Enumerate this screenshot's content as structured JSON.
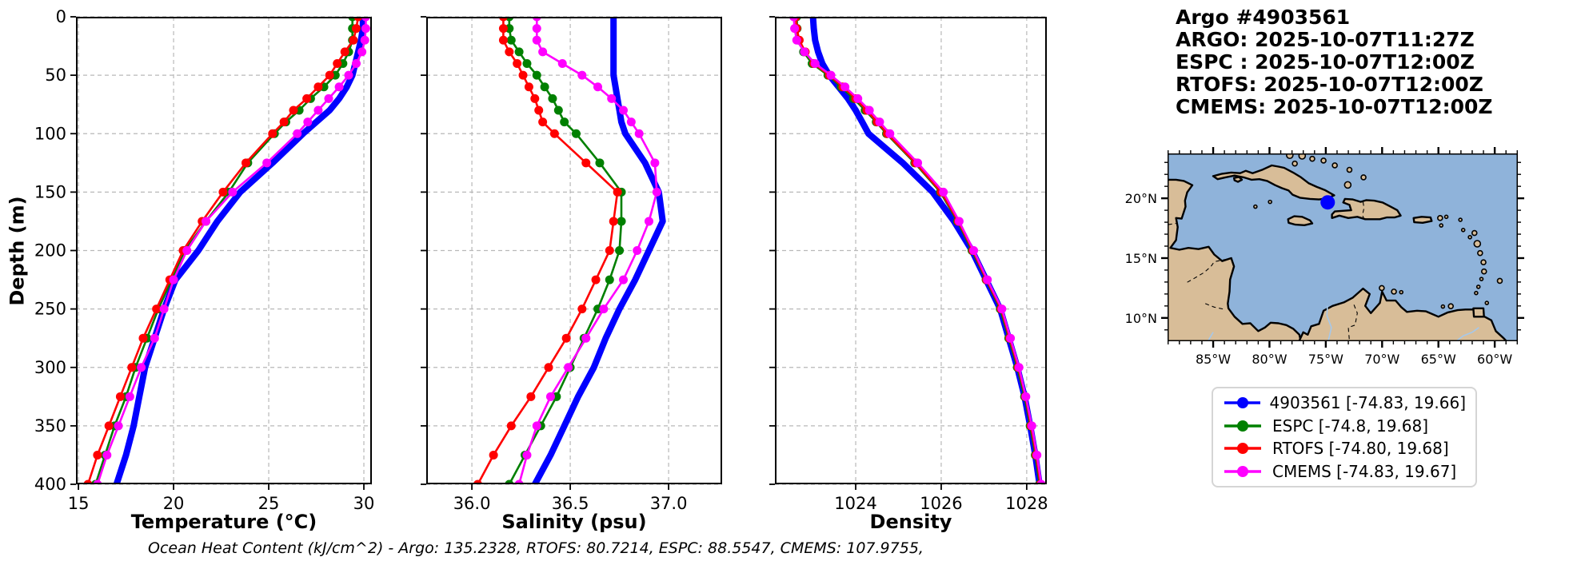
{
  "title_block": {
    "line1": "Argo #4903561",
    "line2": "ARGO: 2025-10-07T11:27Z",
    "line3": "ESPC : 2025-10-07T12:00Z",
    "line4": "RTOFS: 2025-10-07T12:00Z",
    "line5": "CMEMS: 2025-10-07T12:00Z"
  },
  "footer": {
    "ohc_text": "Ocean Heat Content (kJ/cm^2) - Argo: 135.2328,  RTOFS: 80.7214,  ESPC: 88.5547,  CMEMS: 107.9755,"
  },
  "colors": {
    "argo": "#0000ff",
    "espc": "#008000",
    "rtofs": "#ff0000",
    "cmems": "#ff00ff",
    "ocean": "#8fb3da",
    "land": "#d8bd98",
    "grid": "#b8b8b8"
  },
  "legend": {
    "entries": [
      {
        "label": "4903561 [-74.83, 19.66]",
        "color_key": "argo"
      },
      {
        "label": "ESPC [-74.8, 19.68]",
        "color_key": "espc"
      },
      {
        "label": "RTOFS [-74.80, 19.68]",
        "color_key": "rtofs"
      },
      {
        "label": "CMEMS [-74.83, 19.67]",
        "color_key": "cmems"
      }
    ]
  },
  "map": {
    "extent": {
      "lon_min": -89.05,
      "lon_max": -57.95,
      "lat_min": 8.05,
      "lat_max": 23.75
    },
    "xticks": [
      -85,
      -80,
      -75,
      -70,
      -65,
      -60
    ],
    "xtick_labels": [
      "85°W",
      "80°W",
      "75°W",
      "70°W",
      "65°W",
      "60°W"
    ],
    "yticks": [
      20,
      15,
      10
    ],
    "ytick_labels": [
      "20°N",
      "15°N",
      "10°N"
    ],
    "marker": {
      "lon": -74.83,
      "lat": 19.66,
      "color": "#0000ff"
    }
  },
  "chart_data": [
    {
      "type": "line",
      "profile": "temperature",
      "xlabel": "Temperature (°C)",
      "ylabel": "Depth (m)",
      "xlim": [
        14.87,
        30.42
      ],
      "ylim": [
        400,
        0
      ],
      "xticks": [
        15,
        20,
        25,
        30
      ],
      "xtick_labels": [
        "15",
        "20",
        "25",
        "30"
      ],
      "yticks": [
        0,
        50,
        100,
        150,
        200,
        250,
        300,
        350,
        400
      ],
      "ytick_labels": [
        "0",
        "50",
        "100",
        "150",
        "200",
        "250",
        "300",
        "350",
        "400"
      ],
      "show_ytick_labels": true,
      "depths": [
        0,
        10,
        20,
        30,
        40,
        50,
        60,
        70,
        80,
        90,
        100,
        125,
        150,
        175,
        200,
        225,
        250,
        275,
        300,
        325,
        350,
        375,
        400
      ],
      "series": [
        {
          "name": "4903561",
          "color_key": "argo",
          "linewidth": 8,
          "markers": false,
          "values": [
            29.95,
            29.95,
            29.85,
            29.7,
            29.55,
            29.4,
            29.1,
            28.7,
            28.2,
            27.5,
            26.8,
            25.2,
            23.5,
            22.3,
            21.3,
            20.1,
            19.5,
            19.0,
            18.5,
            18.2,
            17.9,
            17.5,
            17.0
          ]
        },
        {
          "name": "ESPC",
          "color_key": "espc",
          "linewidth": 2.6,
          "markers": true,
          "values": [
            29.4,
            29.4,
            29.4,
            29.2,
            28.9,
            28.5,
            27.9,
            27.2,
            26.6,
            25.9,
            25.3,
            23.9,
            22.9,
            21.7,
            20.6,
            19.9,
            19.2,
            18.6,
            18.0,
            17.5,
            16.9,
            16.4,
            15.9
          ]
        },
        {
          "name": "RTOFS",
          "color_key": "rtofs",
          "linewidth": 2.6,
          "markers": true,
          "values": [
            29.7,
            29.6,
            29.45,
            29.0,
            28.6,
            28.2,
            27.6,
            27.0,
            26.3,
            25.8,
            25.2,
            23.8,
            22.6,
            21.5,
            20.5,
            19.8,
            19.1,
            18.4,
            17.8,
            17.2,
            16.6,
            16.0,
            15.5
          ]
        },
        {
          "name": "CMEMS",
          "color_key": "cmems",
          "linewidth": 2.6,
          "markers": true,
          "values": [
            30.1,
            30.1,
            30.05,
            29.9,
            29.6,
            29.2,
            28.7,
            28.15,
            27.6,
            27.05,
            26.5,
            24.9,
            23.1,
            21.7,
            20.7,
            20.0,
            19.5,
            19.0,
            18.3,
            17.7,
            17.1,
            16.5,
            16.0
          ]
        }
      ]
    },
    {
      "type": "line",
      "profile": "salinity",
      "xlabel": "Salinity (psu)",
      "ylabel": "",
      "xlim": [
        35.768,
        37.272
      ],
      "ylim": [
        400,
        0
      ],
      "xticks": [
        36.0,
        36.5,
        37.0
      ],
      "xtick_labels": [
        "36.0",
        "36.5",
        "37.0"
      ],
      "yticks": [
        0,
        50,
        100,
        150,
        200,
        250,
        300,
        350,
        400
      ],
      "ytick_labels": [
        "0",
        "50",
        "100",
        "150",
        "200",
        "250",
        "300",
        "350",
        "400"
      ],
      "show_ytick_labels": false,
      "depths": [
        0,
        10,
        20,
        30,
        40,
        50,
        60,
        70,
        80,
        90,
        100,
        125,
        150,
        175,
        200,
        225,
        250,
        275,
        300,
        325,
        350,
        375,
        400
      ],
      "series": [
        {
          "name": "4903561",
          "color_key": "argo",
          "linewidth": 8,
          "markers": false,
          "values": [
            36.72,
            36.72,
            36.72,
            36.72,
            36.72,
            36.72,
            36.73,
            36.74,
            36.75,
            36.76,
            36.78,
            36.88,
            36.95,
            36.97,
            36.9,
            36.83,
            36.75,
            36.68,
            36.62,
            36.54,
            36.47,
            36.4,
            36.32
          ]
        },
        {
          "name": "ESPC",
          "color_key": "espc",
          "linewidth": 2.6,
          "markers": true,
          "values": [
            36.19,
            36.19,
            36.2,
            36.24,
            36.28,
            36.33,
            36.37,
            36.41,
            36.44,
            36.47,
            36.53,
            36.65,
            36.76,
            36.76,
            36.75,
            36.7,
            36.64,
            36.57,
            36.5,
            36.43,
            36.35,
            36.27,
            36.19
          ]
        },
        {
          "name": "RTOFS",
          "color_key": "rtofs",
          "linewidth": 2.6,
          "markers": true,
          "values": [
            36.16,
            36.16,
            36.16,
            36.19,
            36.23,
            36.26,
            36.29,
            36.32,
            36.34,
            36.36,
            36.42,
            36.58,
            36.74,
            36.72,
            36.7,
            36.63,
            36.56,
            36.48,
            36.39,
            36.3,
            36.2,
            36.11,
            36.03
          ]
        },
        {
          "name": "CMEMS",
          "color_key": "cmems",
          "linewidth": 2.6,
          "markers": true,
          "values": [
            36.33,
            36.33,
            36.33,
            36.36,
            36.46,
            36.56,
            36.64,
            36.71,
            36.77,
            36.81,
            36.85,
            36.93,
            36.94,
            36.9,
            36.84,
            36.77,
            36.67,
            36.58,
            36.49,
            36.4,
            36.33,
            36.28,
            36.24
          ]
        }
      ]
    },
    {
      "type": "line",
      "profile": "density",
      "xlabel": "Density",
      "ylabel": "",
      "xlim": [
        1022.11,
        1028.47
      ],
      "ylim": [
        400,
        0
      ],
      "xticks": [
        1024,
        1026,
        1028
      ],
      "xtick_labels": [
        "1024",
        "1026",
        "1028"
      ],
      "yticks": [
        0,
        50,
        100,
        150,
        200,
        250,
        300,
        350,
        400
      ],
      "ytick_labels": [
        "0",
        "50",
        "100",
        "150",
        "200",
        "250",
        "300",
        "350",
        "400"
      ],
      "show_ytick_labels": false,
      "depths": [
        0,
        10,
        20,
        30,
        40,
        50,
        60,
        70,
        80,
        90,
        100,
        125,
        150,
        175,
        200,
        225,
        250,
        275,
        300,
        325,
        350,
        375,
        400
      ],
      "series": [
        {
          "name": "4903561",
          "color_key": "argo",
          "linewidth": 8,
          "markers": false,
          "values": [
            1023.0,
            1023.02,
            1023.05,
            1023.12,
            1023.22,
            1023.38,
            1023.6,
            1023.82,
            1024.0,
            1024.15,
            1024.3,
            1025.1,
            1025.8,
            1026.3,
            1026.72,
            1027.05,
            1027.38,
            1027.58,
            1027.78,
            1027.95,
            1028.08,
            1028.2,
            1028.3
          ]
        },
        {
          "name": "ESPC",
          "color_key": "espc",
          "linewidth": 2.6,
          "markers": true,
          "values": [
            1022.62,
            1022.63,
            1022.66,
            1022.78,
            1022.98,
            1023.35,
            1023.66,
            1023.95,
            1024.22,
            1024.48,
            1024.72,
            1025.38,
            1025.98,
            1026.38,
            1026.72,
            1027.05,
            1027.38,
            1027.58,
            1027.78,
            1027.95,
            1028.08,
            1028.2,
            1028.3
          ]
        },
        {
          "name": "RTOFS",
          "color_key": "rtofs",
          "linewidth": 2.6,
          "markers": true,
          "values": [
            1022.6,
            1022.62,
            1022.68,
            1022.82,
            1023.02,
            1023.38,
            1023.7,
            1024.0,
            1024.26,
            1024.5,
            1024.74,
            1025.4,
            1026.0,
            1026.4,
            1026.74,
            1027.06,
            1027.4,
            1027.6,
            1027.8,
            1027.97,
            1028.1,
            1028.22,
            1028.32
          ]
        },
        {
          "name": "CMEMS",
          "color_key": "cmems",
          "linewidth": 2.6,
          "markers": true,
          "values": [
            1022.55,
            1022.57,
            1022.62,
            1022.8,
            1023.05,
            1023.42,
            1023.75,
            1024.05,
            1024.32,
            1024.56,
            1024.8,
            1025.45,
            1026.05,
            1026.42,
            1026.76,
            1027.08,
            1027.42,
            1027.62,
            1027.82,
            1027.98,
            1028.12,
            1028.24,
            1028.34
          ]
        }
      ]
    }
  ]
}
